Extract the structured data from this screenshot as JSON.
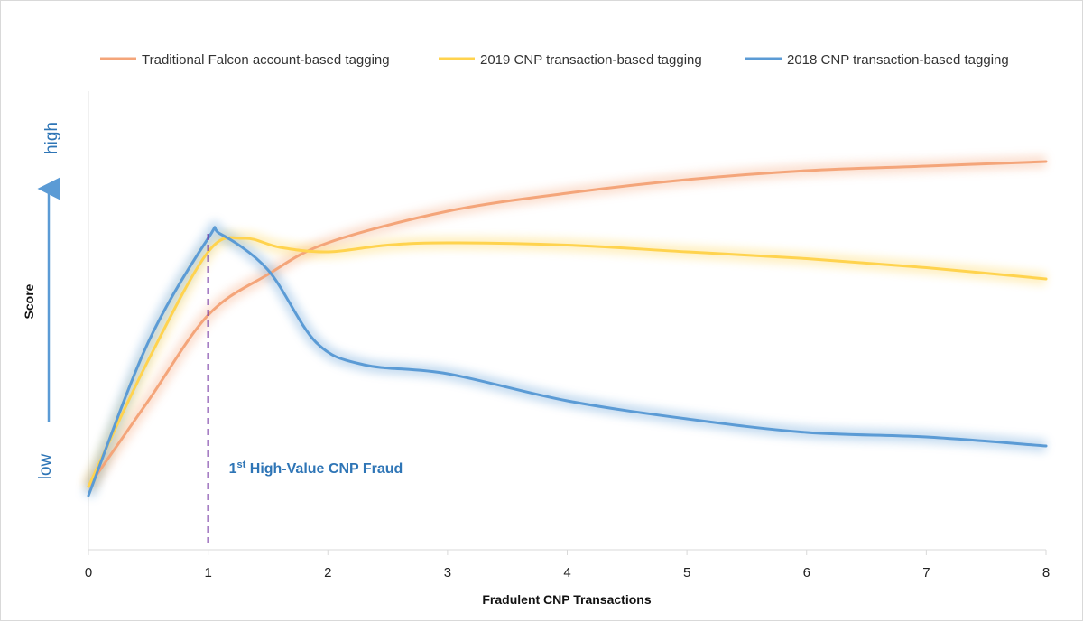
{
  "chart_data": {
    "type": "line",
    "title": "",
    "xlabel": "Fradulent CNP Transactions",
    "ylabel": "Score",
    "y_low_label": "low",
    "y_high_label": "high",
    "xlim": [
      0,
      8
    ],
    "ylim": [
      0,
      100
    ],
    "x_ticks": [
      "0",
      "1",
      "2",
      "3",
      "4",
      "5",
      "6",
      "7",
      "8"
    ],
    "grid": false,
    "legend_position": "top",
    "annotation": {
      "x": 1,
      "text_main": "1",
      "text_sup": "st",
      "text_rest": " High-Value CNP Fraud",
      "color": "#2e75b6",
      "line_color": "#7030a0"
    },
    "series": [
      {
        "name": "Traditional Falcon account-based tagging",
        "color": "#f4a57a",
        "x": [
          0,
          0.5,
          1,
          1.5,
          2,
          3,
          4,
          5,
          6,
          7,
          8
        ],
        "y": [
          14,
          33,
          52,
          61,
          68,
          75,
          79,
          82,
          84,
          85,
          86
        ]
      },
      {
        "name": "2019 CNP transaction-based tagging",
        "color": "#ffd34e",
        "x": [
          0,
          0.5,
          1,
          1.3,
          1.6,
          2,
          2.5,
          3,
          4,
          5,
          6,
          7,
          8
        ],
        "y": [
          14,
          42,
          66,
          69,
          67,
          66,
          67.5,
          68,
          67.5,
          66,
          64.5,
          62.5,
          60
        ]
      },
      {
        "name": "2018 CNP transaction-based tagging",
        "color": "#5b9bd5",
        "x": [
          0,
          0.5,
          1,
          1.1,
          1.5,
          1.9,
          2.3,
          3,
          4,
          5,
          6,
          7,
          8
        ],
        "y": [
          12,
          46,
          69,
          70,
          62,
          46,
          41,
          39,
          33,
          29,
          26,
          25,
          23
        ]
      }
    ]
  }
}
